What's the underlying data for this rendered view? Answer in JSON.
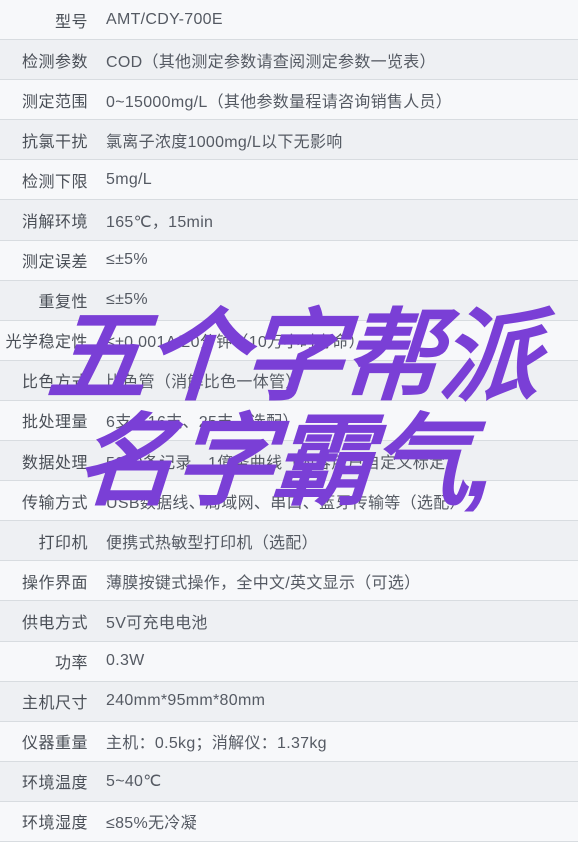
{
  "colors": {
    "rowBorder": "#d8dce0",
    "rowBgOdd": "#f7f8fa",
    "rowBgEven": "#eef0f3",
    "labelText": "#4a4f57",
    "valueText": "#555a63",
    "overlay": "#7a3fd6"
  },
  "fontSizes": {
    "cell": 16,
    "overlay": 100
  },
  "overlay": {
    "line1": "五个字帮派",
    "line2": "名字霸气,"
  },
  "rows": [
    {
      "label": "型号",
      "value": "AMT/CDY-700E"
    },
    {
      "label": "检测参数",
      "value": "COD（其他测定参数请查阅测定参数一览表）"
    },
    {
      "label": "测定范围",
      "value": "0~15000mg/L（其他参数量程请咨询销售人员）"
    },
    {
      "label": "抗氯干扰",
      "value": "氯离子浓度1000mg/L以下无影响"
    },
    {
      "label": "检测下限",
      "value": "5mg/L"
    },
    {
      "label": "消解环境",
      "value": "165℃，15min"
    },
    {
      "label": "测定误差",
      "value": "≤±5%"
    },
    {
      "label": "重复性",
      "value": "≤±5%"
    },
    {
      "label": "光学稳定性",
      "value": "≤±0.001A/20分钟（10万小时寿命）"
    },
    {
      "label": "比色方式",
      "value": "比色管（消解比色一体管）"
    },
    {
      "label": "批处理量",
      "value": "6支、16支、25支（选配）"
    },
    {
      "label": "数据处理",
      "value": "5000条记录、1億条曲线（內容用户自定义标定）"
    },
    {
      "label": "传输方式",
      "value": "USB数据线、局域网、串口、蓝牙传输等（选配）"
    },
    {
      "label": "打印机",
      "value": "便携式热敏型打印机（选配）"
    },
    {
      "label": "操作界面",
      "value": "薄膜按键式操作，全中文/英文显示（可选）"
    },
    {
      "label": "供电方式",
      "value": "5V可充电电池"
    },
    {
      "label": "功率",
      "value": "0.3W"
    },
    {
      "label": "主机尺寸",
      "value": "240mm*95mm*80mm"
    },
    {
      "label": "仪器重量",
      "value": "主机：0.5kg；消解仪：1.37kg"
    },
    {
      "label": "环境温度",
      "value": "5~40℃"
    },
    {
      "label": "环境湿度",
      "value": "≤85%无冷凝"
    }
  ]
}
